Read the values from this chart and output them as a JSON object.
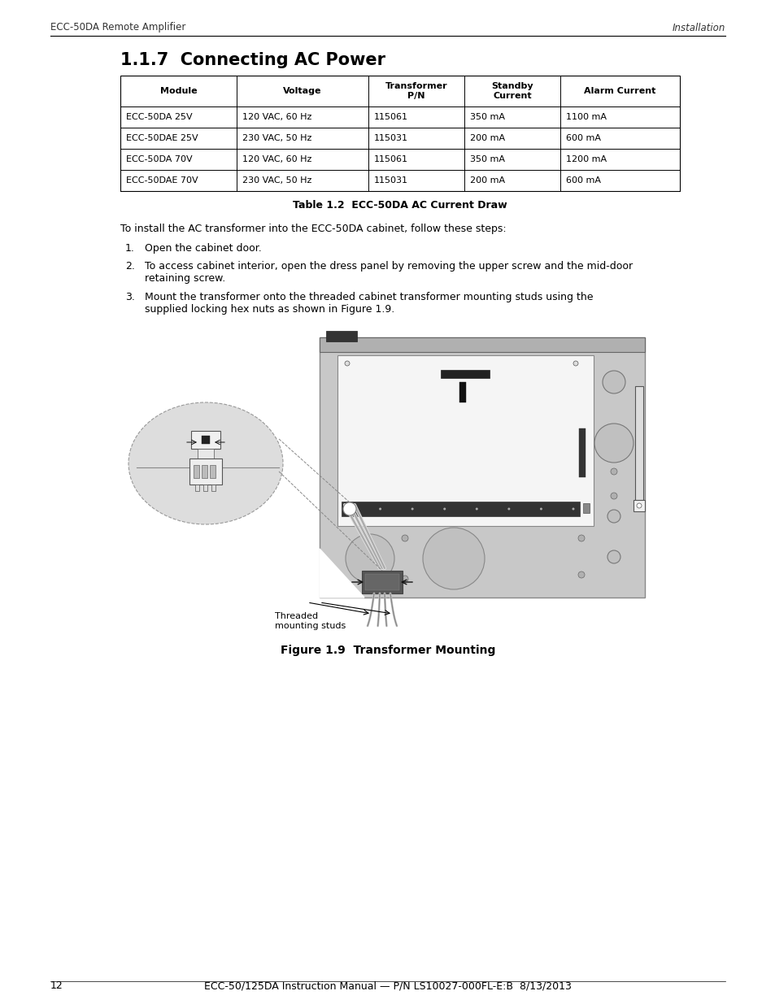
{
  "page_header_left": "ECC-50DA Remote Amplifier",
  "page_header_right": "Installation",
  "section_title": "1.1.7  Connecting AC Power",
  "table_caption": "Table 1.2  ECC-50DA AC Current Draw",
  "table_headers": [
    "Module",
    "Voltage",
    "Transformer\nP/N",
    "Standby\nCurrent",
    "Alarm Current"
  ],
  "table_rows": [
    [
      "ECC-50DA 25V",
      "120 VAC, 60 Hz",
      "115061",
      "350 mA",
      "1100 mA"
    ],
    [
      "ECC-50DAE 25V",
      "230 VAC, 50 Hz",
      "115031",
      "200 mA",
      "600 mA"
    ],
    [
      "ECC-50DA 70V",
      "120 VAC, 60 Hz",
      "115061",
      "350 mA",
      "1200 mA"
    ],
    [
      "ECC-50DAE 70V",
      "230 VAC, 50 Hz",
      "115031",
      "200 mA",
      "600 mA"
    ]
  ],
  "intro_text": "To install the AC transformer into the ECC-50DA cabinet, follow these steps:",
  "steps": [
    "Open the cabinet door.",
    "To access cabinet interior, open the dress panel by removing the upper screw and the mid-door\nretaining screw.",
    "Mount the transformer onto the threaded cabinet transformer mounting studs using the\nsupplied locking hex nuts as shown in Figure 1.9."
  ],
  "figure_caption": "Figure 1.9  Transformer Mounting",
  "callout_text": "Threaded\nmounting studs",
  "page_number": "12",
  "page_footer": "ECC-50/125DA Instruction Manual — P/N LS10027-000FL-E:B  8/13/2013",
  "bg_color": "#ffffff",
  "text_color": "#000000"
}
